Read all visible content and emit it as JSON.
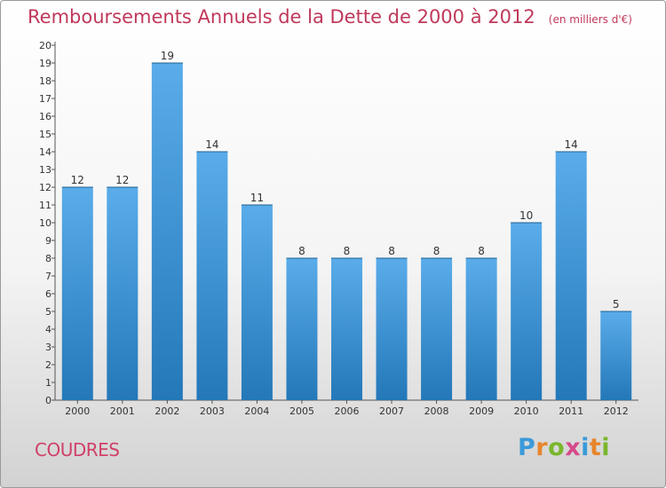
{
  "title": "Remboursements Annuels de la Dette de 2000 à 2012",
  "unit": "(en milliers d'€)",
  "commune": "COUDRES",
  "logo": {
    "text": "Proxiti",
    "letter_colors": [
      "#3a9ad9",
      "#e6852c",
      "#7ab62c",
      "#d64a8a",
      "#3a9ad9",
      "#e6852c",
      "#7ab62c"
    ]
  },
  "colors": {
    "bar_top": "#5aacea",
    "bar_bottom": "#2478b8",
    "title": "#c0385a"
  },
  "chart_data": {
    "type": "bar",
    "categories": [
      "2000",
      "2001",
      "2002",
      "2003",
      "2004",
      "2005",
      "2006",
      "2007",
      "2008",
      "2009",
      "2010",
      "2011",
      "2012"
    ],
    "values": [
      12,
      12,
      19,
      14,
      11,
      8,
      8,
      8,
      8,
      8,
      10,
      14,
      5
    ],
    "ylim": [
      0,
      20
    ],
    "yticks": [
      0,
      1,
      2,
      3,
      4,
      5,
      6,
      7,
      8,
      9,
      10,
      11,
      12,
      13,
      14,
      15,
      16,
      17,
      18,
      19,
      20
    ],
    "grid": false,
    "legend": "none"
  }
}
